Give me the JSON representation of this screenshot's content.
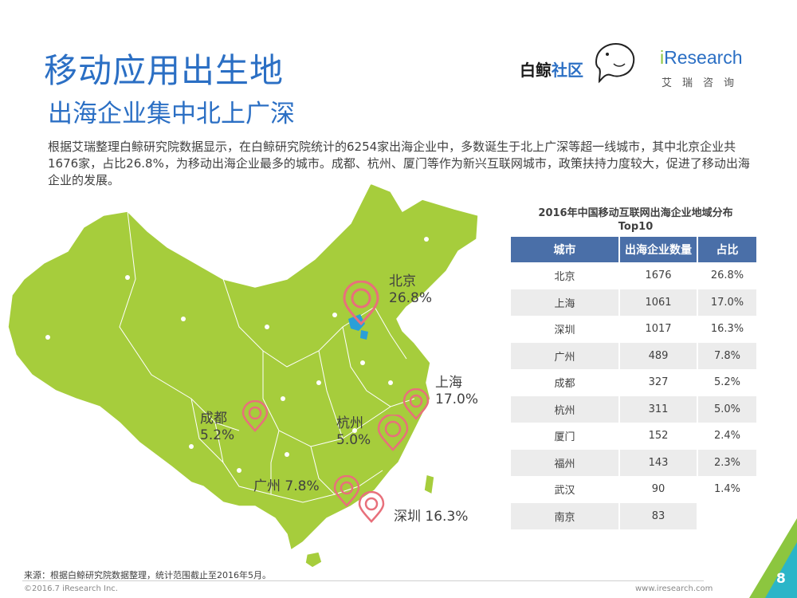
{
  "header": {
    "title": "移动应用出生地",
    "subtitle": "出海企业集中北上广深"
  },
  "logos": {
    "baijing_text_black": "白鲸",
    "baijing_text_blue": "社区",
    "iresearch_i": "i",
    "iresearch_rest": "Research",
    "iresearch_sub": "艾瑞咨询"
  },
  "description": "根据艾瑞整理白鲸研究院数据显示，在白鲸研究院统计的6254家出海企业中，多数诞生于北上广深等超一线城市，其中北京企业共1676家，占比26.8%，为移动出海企业最多的城市。成都、杭州、厦门等作为新兴互联网城市，政策扶持力度较大，促进了移动出海企业的发展。",
  "map_labels": {
    "beijing": {
      "name": "北京",
      "pct": "26.8%"
    },
    "shanghai": {
      "name": "上海",
      "pct": "17.0%"
    },
    "chengdu": {
      "name": "成都",
      "pct": "5.2%"
    },
    "hangzhou": {
      "name": "杭州",
      "pct": "5.0%"
    },
    "guangzhou": {
      "name": "广州 7.8%"
    },
    "shenzhen": {
      "name": "深圳 16.3%"
    }
  },
  "table": {
    "title_line1": "2016年中国移动互联网出海企业地域分布",
    "title_line2": "Top10",
    "headers": [
      "城市",
      "出海企业数量",
      "占比"
    ],
    "rows": [
      [
        "北京",
        "1676",
        "26.8%"
      ],
      [
        "上海",
        "1061",
        "17.0%"
      ],
      [
        "深圳",
        "1017",
        "16.3%"
      ],
      [
        "广州",
        "489",
        "7.8%"
      ],
      [
        "成都",
        "327",
        "5.2%"
      ],
      [
        "杭州",
        "311",
        "5.0%"
      ],
      [
        "厦门",
        "152",
        "2.4%"
      ],
      [
        "福州",
        "143",
        "2.3%"
      ],
      [
        "武汉",
        "90",
        "1.4%"
      ],
      [
        "南京",
        "83",
        ""
      ]
    ]
  },
  "footer": {
    "source": "来源：根据白鲸研究院数据整理，统计范围截止至2016年5月。",
    "copyright": "©2016.7 iResearch Inc.",
    "website": "www.iresearch.com",
    "page_number": "8"
  },
  "colors": {
    "title_blue": "#2b6fc4",
    "map_green": "#a6cd3c",
    "pin_pink": "#e8707b",
    "table_header": "#4a6fa8",
    "corner_green": "#8cc63f",
    "corner_teal": "#2bb5c8"
  }
}
